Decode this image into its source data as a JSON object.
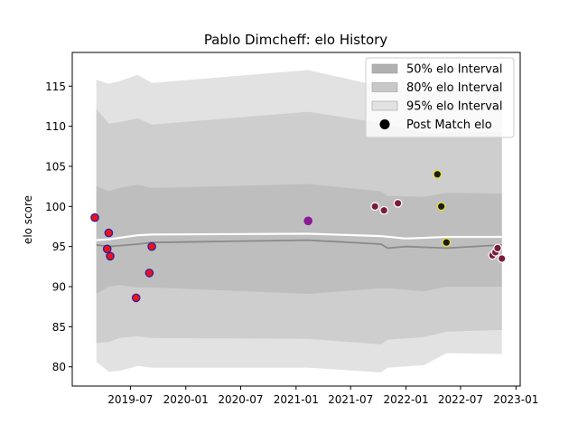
{
  "chart_data": {
    "type": "line",
    "title": "Pablo Dimcheff: elo History",
    "xlabel": "",
    "ylabel": "elo score",
    "x_ticks": [
      "2019-07",
      "2020-01",
      "2020-07",
      "2021-01",
      "2021-07",
      "2022-01",
      "2022-07",
      "2023-01"
    ],
    "y_ticks": [
      80,
      85,
      90,
      95,
      100,
      105,
      110,
      115
    ],
    "xlim": [
      "2018-12-20",
      "2023-01-15"
    ],
    "ylim": [
      77.6,
      119.2
    ],
    "legend_position": "top-right",
    "legend": [
      {
        "label": "50% elo Interval",
        "kind": "band",
        "color": "#b0b0b0"
      },
      {
        "label": "80% elo Interval",
        "kind": "band",
        "color": "#c8c8c8"
      },
      {
        "label": "95% elo Interval",
        "kind": "band",
        "color": "#e2e2e2"
      },
      {
        "label": "Post Match elo",
        "kind": "marker",
        "color": "#000000"
      }
    ],
    "bands": [
      {
        "name": "95% elo Interval",
        "color": "#e2e2e2",
        "upper": [
          [
            "2019-03-10",
            115.8
          ],
          [
            "2019-04-20",
            115.3
          ],
          [
            "2019-05-25",
            115.6
          ],
          [
            "2019-07-25",
            116.4
          ],
          [
            "2019-09-10",
            115.4
          ],
          [
            "2021-02-10",
            117.0
          ],
          [
            "2021-08-20",
            115.4
          ],
          [
            "2022-03-01",
            114.3
          ],
          [
            "2022-07-15",
            114.5
          ],
          [
            "2022-11-15",
            114.6
          ]
        ],
        "lower": [
          [
            "2019-03-10",
            80.6
          ],
          [
            "2019-04-20",
            79.4
          ],
          [
            "2019-05-25",
            79.5
          ],
          [
            "2019-07-25",
            80.1
          ],
          [
            "2019-09-10",
            79.9
          ],
          [
            "2021-02-10",
            79.9
          ],
          [
            "2021-10-10",
            79.3
          ],
          [
            "2021-11-01",
            79.9
          ],
          [
            "2022-03-01",
            80.2
          ],
          [
            "2022-05-15",
            81.7
          ],
          [
            "2022-11-15",
            81.6
          ]
        ]
      },
      {
        "name": "80% elo Interval",
        "color": "#cecece",
        "upper": [
          [
            "2019-03-10",
            112.2
          ],
          [
            "2019-04-20",
            110.3
          ],
          [
            "2019-05-25",
            110.5
          ],
          [
            "2019-07-25",
            111.0
          ],
          [
            "2019-09-10",
            110.2
          ],
          [
            "2021-02-10",
            111.8
          ],
          [
            "2021-08-20",
            110.7
          ],
          [
            "2022-03-01",
            109.2
          ],
          [
            "2022-11-15",
            109.3
          ]
        ],
        "lower": [
          [
            "2019-03-10",
            83.0
          ],
          [
            "2019-04-20",
            83.1
          ],
          [
            "2019-05-25",
            83.6
          ],
          [
            "2019-07-25",
            83.8
          ],
          [
            "2019-09-10",
            83.6
          ],
          [
            "2021-02-10",
            83.5
          ],
          [
            "2021-10-10",
            82.8
          ],
          [
            "2021-11-01",
            83.4
          ],
          [
            "2022-03-01",
            83.7
          ],
          [
            "2022-05-15",
            84.4
          ],
          [
            "2022-11-15",
            84.6
          ]
        ]
      },
      {
        "name": "50% elo Interval",
        "color": "#bebebe",
        "upper": [
          [
            "2019-03-10",
            102.5
          ],
          [
            "2019-04-20",
            101.9
          ],
          [
            "2019-05-25",
            102.3
          ],
          [
            "2019-07-25",
            102.7
          ],
          [
            "2019-09-10",
            102.3
          ],
          [
            "2021-02-10",
            102.8
          ],
          [
            "2021-10-10",
            101.9
          ],
          [
            "2021-11-01",
            101.3
          ],
          [
            "2022-03-01",
            101.2
          ],
          [
            "2022-05-15",
            101.7
          ],
          [
            "2022-11-15",
            101.6
          ]
        ],
        "lower": [
          [
            "2019-03-10",
            89.1
          ],
          [
            "2019-04-20",
            90.0
          ],
          [
            "2019-05-25",
            90.2
          ],
          [
            "2019-07-25",
            89.9
          ],
          [
            "2019-09-10",
            89.9
          ],
          [
            "2021-02-10",
            89.1
          ],
          [
            "2021-10-10",
            89.8
          ],
          [
            "2021-11-01",
            89.8
          ],
          [
            "2022-03-01",
            89.4
          ],
          [
            "2022-05-15",
            90.0
          ],
          [
            "2022-11-15",
            90.0
          ]
        ]
      }
    ],
    "lines": [
      {
        "name": "mean",
        "color": "#ffffff",
        "width": 2.2,
        "points": [
          [
            "2019-03-10",
            95.8
          ],
          [
            "2019-04-20",
            95.9
          ],
          [
            "2019-07-25",
            96.4
          ],
          [
            "2019-09-10",
            96.5
          ],
          [
            "2021-02-10",
            96.6
          ],
          [
            "2021-10-10",
            96.3
          ],
          [
            "2022-01-01",
            96.0
          ],
          [
            "2022-05-15",
            96.2
          ],
          [
            "2022-11-15",
            96.2
          ]
        ]
      },
      {
        "name": "median",
        "color": "#8a8a8a",
        "width": 1.8,
        "points": [
          [
            "2019-03-10",
            95.2
          ],
          [
            "2019-04-20",
            95.0
          ],
          [
            "2019-07-25",
            95.3
          ],
          [
            "2019-09-10",
            95.5
          ],
          [
            "2021-02-10",
            95.8
          ],
          [
            "2021-10-10",
            95.3
          ],
          [
            "2021-11-01",
            94.8
          ],
          [
            "2022-01-01",
            95.0
          ],
          [
            "2022-05-15",
            94.8
          ],
          [
            "2022-11-15",
            95.2
          ]
        ]
      }
    ],
    "points": [
      {
        "date": "2019-03-05",
        "elo": 98.6,
        "fill": "#e8131f",
        "edge": "#2a1c9c"
      },
      {
        "date": "2019-04-20",
        "elo": 96.7,
        "fill": "#e8131f",
        "edge": "#2a1c9c"
      },
      {
        "date": "2019-04-15",
        "elo": 94.7,
        "fill": "#e8131f",
        "edge": "#2a1c9c"
      },
      {
        "date": "2019-04-25",
        "elo": 93.8,
        "fill": "#e8131f",
        "edge": "#2a1c9c"
      },
      {
        "date": "2019-07-20",
        "elo": 88.6,
        "fill": "#e8131f",
        "edge": "#2a1c9c"
      },
      {
        "date": "2019-09-02",
        "elo": 91.7,
        "fill": "#e8131f",
        "edge": "#2a1c9c"
      },
      {
        "date": "2019-09-10",
        "elo": 95.0,
        "fill": "#e8131f",
        "edge": "#2a1c9c"
      },
      {
        "date": "2021-02-10",
        "elo": 98.2,
        "fill": "#8b1a96",
        "edge": "#8b1a96"
      },
      {
        "date": "2021-09-20",
        "elo": 100.0,
        "fill": "#7a1a3c",
        "edge": "#ffffff"
      },
      {
        "date": "2021-10-20",
        "elo": 99.5,
        "fill": "#7a1a3c",
        "edge": "#ffffff"
      },
      {
        "date": "2021-12-05",
        "elo": 100.4,
        "fill": "#7a1a3c",
        "edge": "#ffffff"
      },
      {
        "date": "2022-04-15",
        "elo": 104.0,
        "fill": "#1a1a1a",
        "edge": "#e8e020"
      },
      {
        "date": "2022-04-28",
        "elo": 100.0,
        "fill": "#1a1a1a",
        "edge": "#e8e020"
      },
      {
        "date": "2022-05-15",
        "elo": 95.5,
        "fill": "#1a1a1a",
        "edge": "#e8e020"
      },
      {
        "date": "2022-10-15",
        "elo": 93.9,
        "fill": "#7a1a3c",
        "edge": "#ffffff"
      },
      {
        "date": "2022-10-25",
        "elo": 94.3,
        "fill": "#7a1a3c",
        "edge": "#ffffff"
      },
      {
        "date": "2022-11-01",
        "elo": 94.8,
        "fill": "#7a1a3c",
        "edge": "#ffffff"
      },
      {
        "date": "2022-11-15",
        "elo": 93.5,
        "fill": "#7a1a3c",
        "edge": "#ffffff"
      }
    ]
  }
}
